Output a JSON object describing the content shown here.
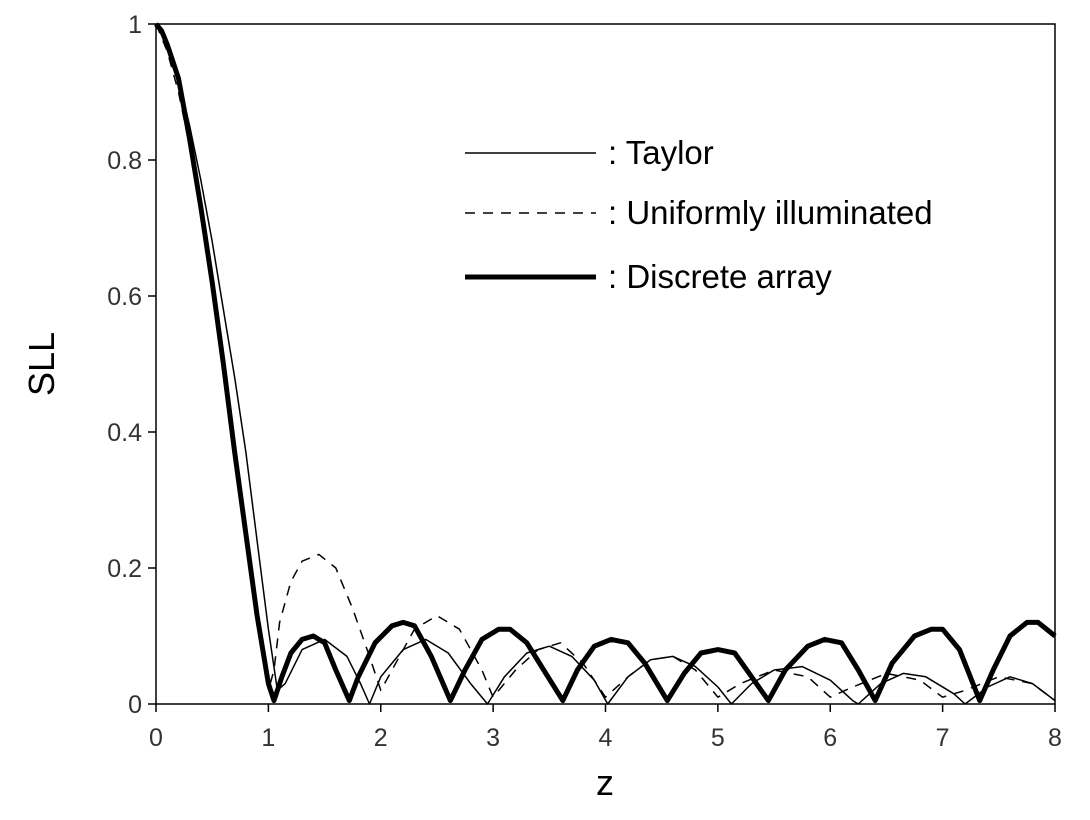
{
  "chart_data": {
    "type": "line",
    "title": "",
    "xlabel": "z",
    "ylabel": "SLL",
    "xlim": [
      0,
      8
    ],
    "ylim": [
      0,
      1
    ],
    "x_ticks": [
      "0",
      "1",
      "2",
      "3",
      "4",
      "5",
      "6",
      "7",
      "8"
    ],
    "y_ticks": [
      "0",
      "0.2",
      "0.4",
      "0.6",
      "0.8",
      "1"
    ],
    "x_tick_values": [
      0,
      1,
      2,
      3,
      4,
      5,
      6,
      7,
      8
    ],
    "y_tick_values": [
      0,
      0.2,
      0.4,
      0.6,
      0.8,
      1
    ],
    "grid": false,
    "legend_position": "top-right",
    "series": [
      {
        "name": ": Taylor",
        "style": "thin-solid",
        "color": "#000000",
        "points": [
          [
            0,
            1
          ],
          [
            0.1,
            0.97
          ],
          [
            0.2,
            0.92
          ],
          [
            0.3,
            0.85
          ],
          [
            0.4,
            0.77
          ],
          [
            0.5,
            0.68
          ],
          [
            0.6,
            0.58
          ],
          [
            0.7,
            0.48
          ],
          [
            0.8,
            0.37
          ],
          [
            0.9,
            0.24
          ],
          [
            1.0,
            0.11
          ],
          [
            1.08,
            0.02
          ],
          [
            1.15,
            0.03
          ],
          [
            1.3,
            0.08
          ],
          [
            1.5,
            0.095
          ],
          [
            1.7,
            0.07
          ],
          [
            1.82,
            0.03
          ],
          [
            1.9,
            0.0
          ],
          [
            2.0,
            0.04
          ],
          [
            2.2,
            0.08
          ],
          [
            2.4,
            0.095
          ],
          [
            2.6,
            0.075
          ],
          [
            2.8,
            0.03
          ],
          [
            2.95,
            0.0
          ],
          [
            3.1,
            0.04
          ],
          [
            3.3,
            0.075
          ],
          [
            3.5,
            0.085
          ],
          [
            3.7,
            0.07
          ],
          [
            3.9,
            0.035
          ],
          [
            4.02,
            0.0
          ],
          [
            4.2,
            0.04
          ],
          [
            4.4,
            0.065
          ],
          [
            4.6,
            0.07
          ],
          [
            4.8,
            0.055
          ],
          [
            5.0,
            0.025
          ],
          [
            5.12,
            0.0
          ],
          [
            5.3,
            0.03
          ],
          [
            5.5,
            0.05
          ],
          [
            5.75,
            0.055
          ],
          [
            6.0,
            0.035
          ],
          [
            6.2,
            0.005
          ],
          [
            6.25,
            0.0
          ],
          [
            6.45,
            0.03
          ],
          [
            6.65,
            0.045
          ],
          [
            6.85,
            0.04
          ],
          [
            7.1,
            0.015
          ],
          [
            7.2,
            0.0
          ],
          [
            7.4,
            0.025
          ],
          [
            7.6,
            0.04
          ],
          [
            7.8,
            0.03
          ],
          [
            8.0,
            0.005
          ]
        ]
      },
      {
        "name": ": Uniformly illuminated",
        "style": "dashed",
        "color": "#000000",
        "points": [
          [
            0,
            1
          ],
          [
            0.1,
            0.96
          ],
          [
            0.2,
            0.9
          ],
          [
            0.3,
            0.82
          ],
          [
            0.4,
            0.72
          ],
          [
            0.5,
            0.61
          ],
          [
            0.6,
            0.49
          ],
          [
            0.7,
            0.37
          ],
          [
            0.8,
            0.25
          ],
          [
            0.9,
            0.14
          ],
          [
            1.0,
            0.02
          ],
          [
            1.05,
            0.05
          ],
          [
            1.1,
            0.12
          ],
          [
            1.2,
            0.18
          ],
          [
            1.3,
            0.21
          ],
          [
            1.45,
            0.22
          ],
          [
            1.6,
            0.2
          ],
          [
            1.75,
            0.14
          ],
          [
            1.9,
            0.07
          ],
          [
            2.0,
            0.02
          ],
          [
            2.1,
            0.05
          ],
          [
            2.3,
            0.11
          ],
          [
            2.5,
            0.13
          ],
          [
            2.7,
            0.11
          ],
          [
            2.9,
            0.05
          ],
          [
            3.0,
            0.01
          ],
          [
            3.2,
            0.05
          ],
          [
            3.4,
            0.08
          ],
          [
            3.6,
            0.09
          ],
          [
            3.8,
            0.06
          ],
          [
            4.0,
            0.01
          ],
          [
            4.2,
            0.04
          ],
          [
            4.4,
            0.065
          ],
          [
            4.6,
            0.07
          ],
          [
            4.8,
            0.05
          ],
          [
            5.0,
            0.01
          ],
          [
            5.2,
            0.03
          ],
          [
            5.5,
            0.05
          ],
          [
            5.8,
            0.04
          ],
          [
            6.0,
            0.01
          ],
          [
            6.2,
            0.025
          ],
          [
            6.5,
            0.045
          ],
          [
            6.8,
            0.035
          ],
          [
            7.0,
            0.01
          ],
          [
            7.2,
            0.02
          ],
          [
            7.5,
            0.04
          ],
          [
            7.8,
            0.03
          ],
          [
            8.0,
            0.005
          ]
        ]
      },
      {
        "name": ": Discrete array",
        "style": "thick-solid",
        "color": "#000000",
        "points": [
          [
            0,
            1
          ],
          [
            0.05,
            0.99
          ],
          [
            0.1,
            0.97
          ],
          [
            0.2,
            0.92
          ],
          [
            0.3,
            0.83
          ],
          [
            0.4,
            0.73
          ],
          [
            0.5,
            0.62
          ],
          [
            0.6,
            0.5
          ],
          [
            0.7,
            0.37
          ],
          [
            0.8,
            0.25
          ],
          [
            0.9,
            0.13
          ],
          [
            1.0,
            0.03
          ],
          [
            1.05,
            0.005
          ],
          [
            1.12,
            0.04
          ],
          [
            1.2,
            0.075
          ],
          [
            1.3,
            0.095
          ],
          [
            1.4,
            0.1
          ],
          [
            1.5,
            0.09
          ],
          [
            1.6,
            0.05
          ],
          [
            1.72,
            0.005
          ],
          [
            1.8,
            0.04
          ],
          [
            1.95,
            0.09
          ],
          [
            2.1,
            0.115
          ],
          [
            2.2,
            0.12
          ],
          [
            2.3,
            0.115
          ],
          [
            2.45,
            0.07
          ],
          [
            2.62,
            0.005
          ],
          [
            2.75,
            0.05
          ],
          [
            2.9,
            0.095
          ],
          [
            3.05,
            0.11
          ],
          [
            3.15,
            0.11
          ],
          [
            3.3,
            0.09
          ],
          [
            3.45,
            0.05
          ],
          [
            3.62,
            0.005
          ],
          [
            3.75,
            0.05
          ],
          [
            3.9,
            0.085
          ],
          [
            4.05,
            0.095
          ],
          [
            4.2,
            0.09
          ],
          [
            4.35,
            0.06
          ],
          [
            4.55,
            0.005
          ],
          [
            4.7,
            0.045
          ],
          [
            4.85,
            0.075
          ],
          [
            5.0,
            0.08
          ],
          [
            5.15,
            0.075
          ],
          [
            5.3,
            0.04
          ],
          [
            5.45,
            0.005
          ],
          [
            5.6,
            0.05
          ],
          [
            5.8,
            0.085
          ],
          [
            5.95,
            0.095
          ],
          [
            6.1,
            0.09
          ],
          [
            6.25,
            0.05
          ],
          [
            6.4,
            0.005
          ],
          [
            6.55,
            0.06
          ],
          [
            6.75,
            0.1
          ],
          [
            6.9,
            0.11
          ],
          [
            7.0,
            0.11
          ],
          [
            7.15,
            0.08
          ],
          [
            7.33,
            0.005
          ],
          [
            7.45,
            0.05
          ],
          [
            7.6,
            0.1
          ],
          [
            7.75,
            0.12
          ],
          [
            7.85,
            0.12
          ],
          [
            8.0,
            0.1
          ]
        ]
      }
    ]
  }
}
